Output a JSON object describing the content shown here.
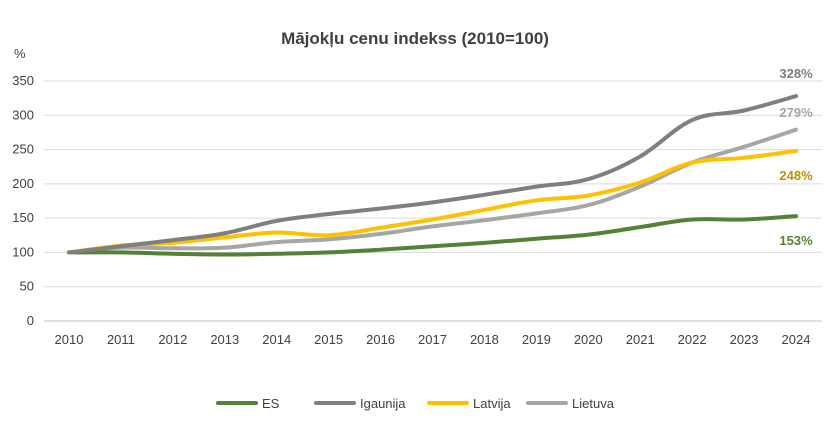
{
  "chart_data": {
    "type": "line",
    "title": "Mājokļu cenu indekss (2010=100)",
    "ylabel": "%",
    "xlabel": "",
    "ylim": [
      0,
      350
    ],
    "yticks": [
      "0",
      "50",
      "100",
      "150",
      "200",
      "250",
      "300",
      "350"
    ],
    "categories": [
      "2010",
      "2011",
      "2012",
      "2013",
      "2014",
      "2015",
      "2016",
      "2017",
      "2018",
      "2019",
      "2020",
      "2021",
      "2022",
      "2023",
      "2024"
    ],
    "grid": true,
    "legend_position": "bottom",
    "series": [
      {
        "name": "ES",
        "color": "#548235",
        "end_label": "153%",
        "values": [
          100,
          100,
          98,
          97,
          98,
          100,
          104,
          109,
          114,
          120,
          126,
          137,
          148,
          148,
          153
        ]
      },
      {
        "name": "Igaunija",
        "color": "#7f7f7f",
        "end_label": "328%",
        "values": [
          100,
          109,
          118,
          128,
          146,
          156,
          164,
          173,
          184,
          196,
          207,
          240,
          293,
          307,
          328
        ]
      },
      {
        "name": "Latvija",
        "color": "#ffc000",
        "end_label": "248%",
        "values": [
          100,
          110,
          114,
          122,
          129,
          125,
          136,
          148,
          162,
          176,
          183,
          202,
          231,
          238,
          248
        ]
      },
      {
        "name": "Lietuva",
        "color": "#a6a6a6",
        "end_label": "279%",
        "values": [
          100,
          107,
          106,
          107,
          115,
          119,
          127,
          138,
          147,
          157,
          169,
          196,
          231,
          254,
          279
        ]
      }
    ],
    "end_label_colors": [
      "#548235",
      "#7f7f7f",
      "#bf9000",
      "#a6a6a6"
    ]
  }
}
